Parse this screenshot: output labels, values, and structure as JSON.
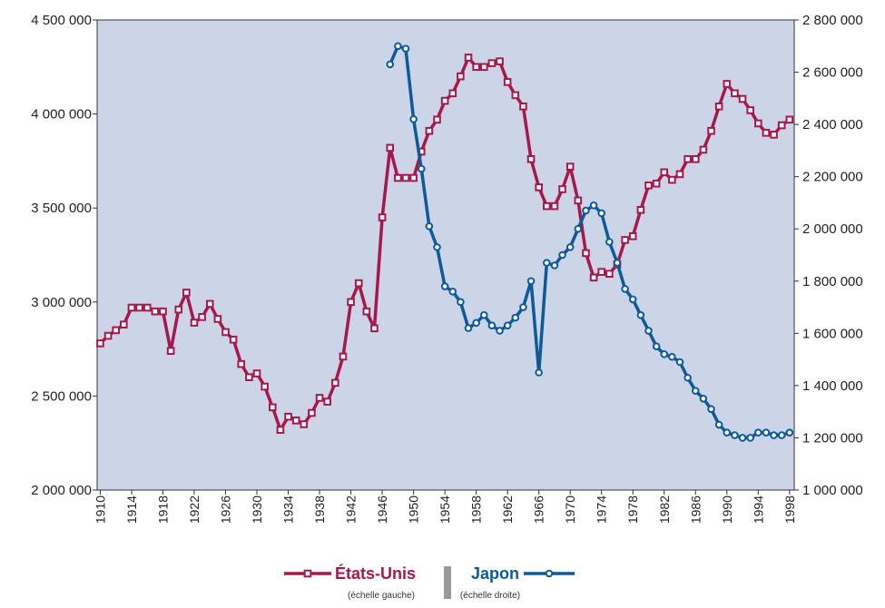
{
  "chart_data": {
    "type": "line",
    "x": [
      1910,
      1911,
      1912,
      1913,
      1914,
      1915,
      1916,
      1917,
      1918,
      1919,
      1920,
      1921,
      1922,
      1923,
      1924,
      1925,
      1926,
      1927,
      1928,
      1929,
      1930,
      1931,
      1932,
      1933,
      1934,
      1935,
      1936,
      1937,
      1938,
      1939,
      1940,
      1941,
      1942,
      1943,
      1944,
      1945,
      1946,
      1947,
      1948,
      1949,
      1950,
      1951,
      1952,
      1953,
      1954,
      1955,
      1956,
      1957,
      1958,
      1959,
      1960,
      1961,
      1962,
      1963,
      1964,
      1965,
      1966,
      1967,
      1968,
      1969,
      1970,
      1971,
      1972,
      1973,
      1974,
      1975,
      1976,
      1977,
      1978,
      1979,
      1980,
      1981,
      1982,
      1983,
      1984,
      1985,
      1986,
      1987,
      1988,
      1989,
      1990,
      1991,
      1992,
      1993,
      1994,
      1995,
      1996,
      1997,
      1998
    ],
    "series": [
      {
        "name": "États-Unis",
        "note": "(échelle gauche)",
        "color": "#a8174a",
        "marker": "square",
        "values": [
          2780000,
          2820000,
          2850000,
          2880000,
          2970000,
          2970000,
          2970000,
          2950000,
          2950000,
          2740000,
          2960000,
          3050000,
          2890000,
          2920000,
          2990000,
          2910000,
          2840000,
          2800000,
          2670000,
          2600000,
          2620000,
          2550000,
          2440000,
          2320000,
          2390000,
          2370000,
          2350000,
          2410000,
          2490000,
          2470000,
          2570000,
          2710000,
          3000000,
          3100000,
          2950000,
          2860000,
          3450000,
          3820000,
          3660000,
          3660000,
          3660000,
          3800000,
          3910000,
          3970000,
          4070000,
          4110000,
          4200000,
          4300000,
          4250000,
          4250000,
          4270000,
          4280000,
          4170000,
          4100000,
          4040000,
          3760000,
          3610000,
          3510000,
          3510000,
          3600000,
          3720000,
          3540000,
          3260000,
          3130000,
          3160000,
          3150000,
          3200000,
          3330000,
          3350000,
          3490000,
          3620000,
          3630000,
          3690000,
          3650000,
          3680000,
          3760000,
          3760000,
          3810000,
          3910000,
          4040000,
          4160000,
          4110000,
          4080000,
          4020000,
          3950000,
          3900000,
          3890000,
          3940000,
          3970000
        ]
      },
      {
        "name": "Japon",
        "note": "(échelle droite)",
        "color": "#0e5a98",
        "marker": "circle",
        "axis": "y2",
        "values": [
          null,
          null,
          null,
          null,
          null,
          null,
          null,
          null,
          null,
          null,
          null,
          null,
          null,
          null,
          null,
          null,
          null,
          null,
          null,
          null,
          null,
          null,
          null,
          null,
          null,
          null,
          null,
          null,
          null,
          null,
          null,
          null,
          null,
          null,
          null,
          null,
          null,
          2630000,
          2700000,
          2690000,
          2420000,
          2230000,
          2010000,
          1930000,
          1780000,
          1760000,
          1720000,
          1620000,
          1640000,
          1670000,
          1630000,
          1610000,
          1630000,
          1660000,
          1700000,
          1800000,
          1450000,
          1870000,
          1860000,
          1900000,
          1930000,
          2000000,
          2070000,
          2090000,
          2060000,
          1950000,
          1870000,
          1770000,
          1730000,
          1670000,
          1610000,
          1550000,
          1520000,
          1510000,
          1490000,
          1430000,
          1380000,
          1350000,
          1310000,
          1250000,
          1220000,
          1210000,
          1200000,
          1200000,
          1220000,
          1220000,
          1210000,
          1210000,
          1220000
        ]
      }
    ],
    "xlim": [
      1909.6,
      1998.6
    ],
    "xticks": [
      1910,
      1914,
      1918,
      1922,
      1926,
      1930,
      1934,
      1938,
      1942,
      1946,
      1950,
      1954,
      1958,
      1962,
      1966,
      1970,
      1974,
      1978,
      1982,
      1986,
      1990,
      1994,
      1998
    ],
    "ylim": [
      2000000,
      4500000
    ],
    "yticks": [
      {
        "value": 2000000,
        "label": "2 000 000"
      },
      {
        "value": 2500000,
        "label": "2 500 000"
      },
      {
        "value": 3000000,
        "label": "3 000 000"
      },
      {
        "value": 3500000,
        "label": "3 500 000"
      },
      {
        "value": 4000000,
        "label": "4 000 000"
      },
      {
        "value": 4500000,
        "label": "4 500 000"
      }
    ],
    "y2lim": [
      1000000,
      2800000
    ],
    "y2ticks": [
      {
        "value": 1000000,
        "label": "1 000 000"
      },
      {
        "value": 1200000,
        "label": "1 200 000"
      },
      {
        "value": 1400000,
        "label": "1 400 000"
      },
      {
        "value": 1600000,
        "label": "1 600 000"
      },
      {
        "value": 1800000,
        "label": "1 800 000"
      },
      {
        "value": 2000000,
        "label": "2 000 000"
      },
      {
        "value": 2200000,
        "label": "2 200 000"
      },
      {
        "value": 2400000,
        "label": "2 400 000"
      },
      {
        "value": 2600000,
        "label": "2 600 000"
      },
      {
        "value": 2800000,
        "label": "2 800 000"
      }
    ],
    "background": "#ccd5e8"
  }
}
